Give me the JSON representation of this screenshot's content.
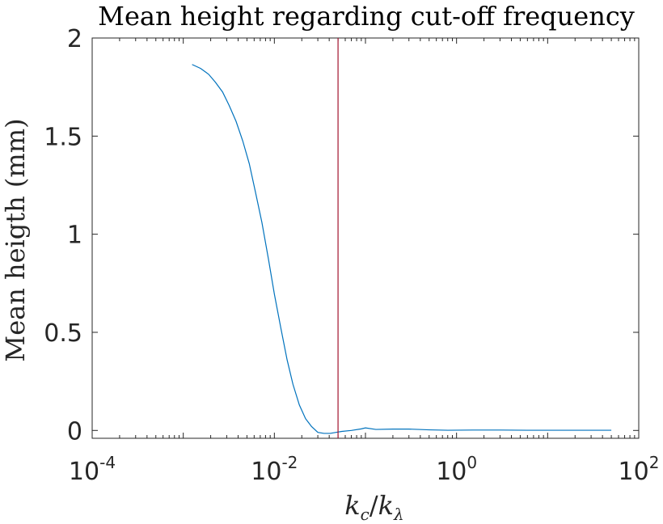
{
  "chart_data": {
    "type": "line",
    "title": "Mean height regarding cut-off frequency",
    "xlabel": {
      "base1": "k",
      "sub1": "c",
      "slash": "/",
      "base2": "k",
      "sub2": "λ"
    },
    "ylabel": "Mean heigth (mm)",
    "xscale": "log",
    "xlim": [
      0.0001,
      100
    ],
    "ylim": [
      -0.04,
      2
    ],
    "xticks": [
      {
        "value": 0.0001,
        "base": "10",
        "exp": "-4"
      },
      {
        "value": 0.01,
        "base": "10",
        "exp": "-2"
      },
      {
        "value": 1,
        "base": "10",
        "exp": "0"
      },
      {
        "value": 100,
        "base": "10",
        "exp": "2"
      }
    ],
    "yticks": [
      {
        "value": 0,
        "label": "0"
      },
      {
        "value": 0.5,
        "label": "0.5"
      },
      {
        "value": 1,
        "label": "1"
      },
      {
        "value": 1.5,
        "label": "1.5"
      },
      {
        "value": 2,
        "label": "2"
      }
    ],
    "grid": false,
    "series": [
      {
        "color": "#0072bd",
        "x": [
          0.00125,
          0.00155,
          0.0019,
          0.00225,
          0.0027,
          0.0032,
          0.0038,
          0.0045,
          0.0053,
          0.0062,
          0.0073,
          0.0086,
          0.01,
          0.0118,
          0.0138,
          0.016,
          0.0188,
          0.022,
          0.0256,
          0.03,
          0.035,
          0.041,
          0.0475,
          0.055,
          0.07,
          0.09,
          0.1,
          0.13,
          0.2,
          0.3,
          0.5,
          0.8,
          1.5,
          3,
          6,
          10,
          20,
          50
        ],
        "y": [
          1.865,
          1.845,
          1.815,
          1.775,
          1.725,
          1.655,
          1.575,
          1.475,
          1.36,
          1.215,
          1.06,
          0.875,
          0.695,
          0.52,
          0.36,
          0.235,
          0.13,
          0.06,
          0.02,
          -0.01,
          -0.015,
          -0.015,
          -0.01,
          -0.005,
          0.0,
          0.008,
          0.013,
          0.005,
          0.007,
          0.007,
          0.003,
          0.001,
          0.002,
          0.002,
          0.001,
          0.001,
          0.001,
          0.001
        ]
      }
    ],
    "vline": {
      "x": 0.05,
      "color": "#a2142f"
    }
  }
}
